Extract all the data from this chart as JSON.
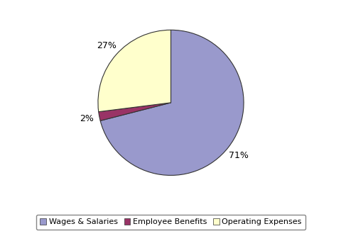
{
  "labels": [
    "Wages & Salaries",
    "Employee Benefits",
    "Operating Expenses"
  ],
  "values": [
    71,
    2,
    27
  ],
  "colors": [
    "#9999cc",
    "#993366",
    "#ffffcc"
  ],
  "edge_color": "#333333",
  "startangle": 90,
  "background_color": "#ffffff",
  "legend_fontsize": 8,
  "pct_fontsize": 9,
  "figsize": [
    4.81,
    3.33
  ],
  "dpi": 100,
  "pct_distance": 1.18
}
